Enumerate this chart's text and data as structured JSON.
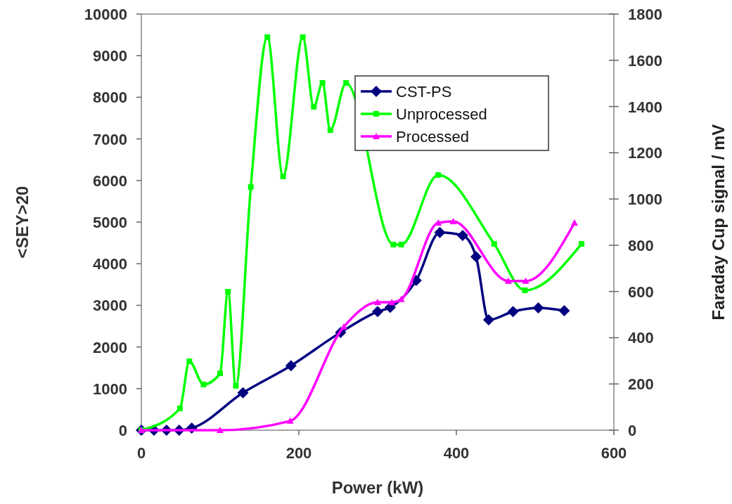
{
  "chart_data": {
    "type": "line",
    "xlabel": "Power (kW)",
    "ylabel": "<SEY>20",
    "y2label": "Faraday Cup signal / mV",
    "xlim": [
      0,
      600
    ],
    "xticks": [
      0,
      200,
      400,
      600
    ],
    "ylim": [
      0,
      10000
    ],
    "yticks": [
      0,
      1000,
      2000,
      3000,
      4000,
      5000,
      6000,
      7000,
      8000,
      9000,
      10000
    ],
    "y2lim": [
      0,
      1800
    ],
    "y2ticks": [
      0,
      200,
      400,
      600,
      800,
      1000,
      1200,
      1400,
      1600,
      1800
    ],
    "grid": false,
    "legend": "top right",
    "line_style": "solid",
    "series": [
      {
        "name": "CST-PS",
        "color": "#000080",
        "marker": "diamond",
        "x": [
          0,
          16,
          32,
          48,
          64,
          129,
          190,
          253,
          300,
          316,
          349,
          379,
          408,
          425,
          441,
          472,
          504,
          537
        ],
        "values": [
          0,
          0,
          0,
          0,
          50,
          900,
          1550,
          2350,
          2850,
          2950,
          3600,
          4750,
          4680,
          4170,
          2650,
          2850,
          2940,
          2870
        ]
      },
      {
        "name": "Unprocessed",
        "color": "#00ff00",
        "marker": "square",
        "axis": "y2",
        "x": [
          0,
          49,
          61,
          79,
          100,
          110,
          120,
          139,
          160,
          180,
          205,
          219,
          230,
          240,
          260,
          320,
          330,
          377,
          448,
          487,
          559
        ],
        "values": [
          0,
          94,
          298,
          198,
          246,
          599,
          192,
          1052,
          1700,
          1098,
          1700,
          1399,
          1502,
          1298,
          1502,
          803,
          803,
          1104,
          806,
          605,
          806
        ]
      },
      {
        "name": "Processed",
        "color": "#ff00ff",
        "marker": "triangle",
        "axis": "y2",
        "x": [
          0,
          100,
          189,
          257,
          300,
          318,
          330,
          377,
          396,
          466,
          488,
          550
        ],
        "values": [
          0,
          0,
          40,
          447,
          553,
          553,
          566,
          897,
          903,
          645,
          645,
          897
        ]
      }
    ]
  }
}
